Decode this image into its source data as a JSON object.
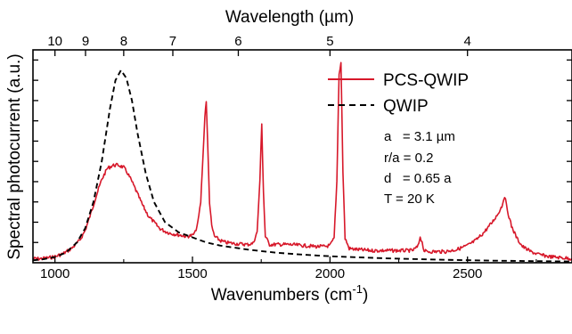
{
  "chart_data": {
    "type": "line",
    "xlabel": "Wavenumbers (cm",
    "xlabel_sup": "-1",
    "xlabel_close": ")",
    "x2label": "Wavelength (µm)",
    "ylabel": "Spectral photocurrent (a.u.)",
    "xlim": [
      920,
      2880
    ],
    "ylim": [
      0,
      1.05
    ],
    "x_ticks": [
      1000,
      1500,
      2000,
      2500
    ],
    "x_tick_labels": [
      "1000",
      "1500",
      "2000",
      "2500"
    ],
    "x_minor_ticks": [
      1250,
      1750,
      2250,
      2750
    ],
    "x2_ticks": [
      10,
      9,
      8,
      7,
      6,
      5,
      4
    ],
    "x2_tick_labels": [
      "10",
      "9",
      "8",
      "7",
      "6",
      "5",
      "4"
    ],
    "y_ticks": [
      0.1,
      0.2,
      0.3,
      0.4,
      0.5,
      0.6,
      0.7,
      0.8,
      0.9,
      1.0
    ],
    "legend": "top-right",
    "series": [
      {
        "name": "PCS-QWIP",
        "style": "solid",
        "color": "#d7182a",
        "x": [
          920,
          950,
          980,
          1000,
          1030,
          1060,
          1090,
          1110,
          1130,
          1150,
          1170,
          1190,
          1210,
          1230,
          1250,
          1265,
          1280,
          1300,
          1320,
          1340,
          1360,
          1380,
          1400,
          1420,
          1440,
          1460,
          1480,
          1500,
          1510,
          1520,
          1530,
          1538,
          1545,
          1550,
          1555,
          1562,
          1570,
          1580,
          1600,
          1620,
          1650,
          1680,
          1700,
          1720,
          1735,
          1745,
          1752,
          1758,
          1765,
          1780,
          1800,
          1850,
          1900,
          1950,
          1980,
          2000,
          2015,
          2025,
          2033,
          2040,
          2047,
          2055,
          2070,
          2100,
          2150,
          2200,
          2250,
          2300,
          2320,
          2328,
          2335,
          2342,
          2350,
          2380,
          2420,
          2460,
          2500,
          2530,
          2560,
          2590,
          2610,
          2625,
          2635,
          2645,
          2660,
          2680,
          2700,
          2730,
          2760,
          2800,
          2840,
          2880
        ],
        "y": [
          0.02,
          0.02,
          0.025,
          0.03,
          0.045,
          0.07,
          0.11,
          0.16,
          0.24,
          0.33,
          0.41,
          0.465,
          0.48,
          0.482,
          0.47,
          0.44,
          0.4,
          0.34,
          0.28,
          0.23,
          0.2,
          0.17,
          0.155,
          0.145,
          0.14,
          0.135,
          0.13,
          0.135,
          0.15,
          0.2,
          0.3,
          0.52,
          0.72,
          0.8,
          0.6,
          0.3,
          0.18,
          0.13,
          0.11,
          0.1,
          0.095,
          0.092,
          0.09,
          0.095,
          0.15,
          0.4,
          0.69,
          0.35,
          0.13,
          0.09,
          0.09,
          0.09,
          0.085,
          0.08,
          0.08,
          0.085,
          0.12,
          0.4,
          0.93,
          0.99,
          0.45,
          0.12,
          0.07,
          0.065,
          0.06,
          0.06,
          0.06,
          0.06,
          0.08,
          0.13,
          0.1,
          0.06,
          0.055,
          0.055,
          0.055,
          0.065,
          0.085,
          0.11,
          0.15,
          0.2,
          0.24,
          0.28,
          0.33,
          0.26,
          0.18,
          0.12,
          0.08,
          0.055,
          0.04,
          0.03,
          0.025,
          0.02
        ]
      },
      {
        "name": "QWIP",
        "style": "dashed",
        "color": "#000000",
        "x": [
          920,
          960,
          1000,
          1040,
          1080,
          1110,
          1140,
          1170,
          1200,
          1220,
          1240,
          1260,
          1280,
          1300,
          1330,
          1360,
          1400,
          1450,
          1500,
          1550,
          1600,
          1700,
          1800,
          1900,
          2000,
          2200,
          2400,
          2600,
          2880
        ],
        "y": [
          0.012,
          0.018,
          0.028,
          0.05,
          0.1,
          0.17,
          0.3,
          0.5,
          0.76,
          0.9,
          0.95,
          0.91,
          0.8,
          0.64,
          0.44,
          0.3,
          0.2,
          0.15,
          0.125,
          0.1,
          0.085,
          0.065,
          0.05,
          0.04,
          0.032,
          0.022,
          0.015,
          0.01,
          0.006
        ]
      }
    ],
    "annotations": [
      "a   = 3.1 µm",
      "r/a = 0.2",
      "d   = 0.65 a",
      "T = 20 K"
    ]
  }
}
